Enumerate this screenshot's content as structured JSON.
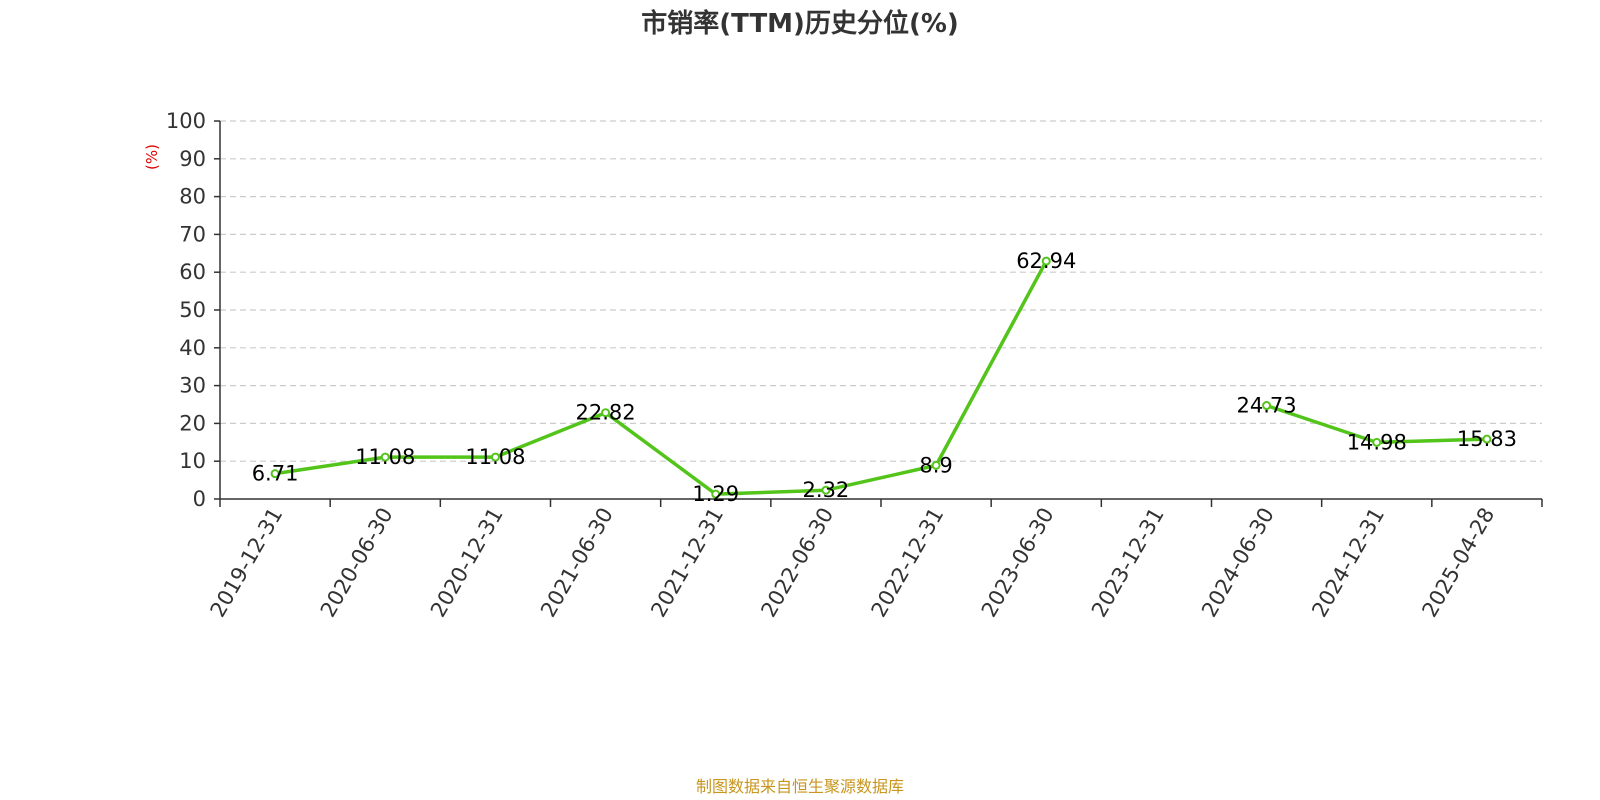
{
  "chart_data": {
    "type": "line",
    "title": "市销率(TTM)历史分位(%)",
    "ylabel": "(%)",
    "xlabel": "",
    "ylim": [
      0,
      100
    ],
    "yticks": [
      0,
      10,
      20,
      30,
      40,
      50,
      60,
      70,
      80,
      90,
      100
    ],
    "categories": [
      "2019-12-31",
      "2020-06-30",
      "2020-12-31",
      "2021-06-30",
      "2021-12-31",
      "2022-06-30",
      "2022-12-31",
      "2023-06-30",
      "2023-12-31",
      "2024-06-30",
      "2024-12-31",
      "2025-04-28"
    ],
    "series": [
      {
        "values": [
          6.71,
          11.08,
          11.08,
          22.82,
          1.29,
          2.32,
          8.9,
          62.94,
          null,
          24.73,
          14.98,
          15.83
        ],
        "labels": [
          "6.71",
          "11.08",
          "11.08",
          "22.82",
          "1.29",
          "2.32",
          "8.9",
          "62.94",
          "",
          "24.73",
          "14.98",
          "15.83"
        ],
        "color": "#52c41a"
      }
    ],
    "grid": true,
    "grid_style": "dashed",
    "source": "制图数据来自恒生聚源数据库"
  },
  "colors": {
    "line": "#52c41a",
    "title": "#333333",
    "ylabel": "#e00000",
    "source": "#c8961e",
    "grid": "#cccccc",
    "axis": "#333333"
  }
}
